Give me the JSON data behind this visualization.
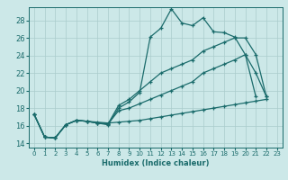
{
  "xlabel": "Humidex (Indice chaleur)",
  "bg_color": "#cce8e8",
  "grid_color": "#aacccc",
  "line_color": "#1a6b6b",
  "xlim": [
    -0.5,
    23.5
  ],
  "ylim": [
    13.5,
    29.5
  ],
  "xticks": [
    0,
    1,
    2,
    3,
    4,
    5,
    6,
    7,
    8,
    9,
    10,
    11,
    12,
    13,
    14,
    15,
    16,
    17,
    18,
    19,
    20,
    21,
    22,
    23
  ],
  "yticks": [
    14,
    16,
    18,
    20,
    22,
    24,
    26,
    28
  ],
  "series": [
    {
      "x": [
        0,
        1,
        2,
        3,
        4,
        5,
        6,
        7,
        8,
        9,
        10,
        11,
        12,
        13,
        14,
        15,
        16,
        17,
        18,
        19,
        20,
        21
      ],
      "y": [
        17.3,
        14.7,
        14.6,
        16.1,
        16.6,
        16.5,
        16.3,
        16.1,
        18.0,
        18.7,
        19.8,
        26.1,
        27.1,
        29.3,
        27.7,
        27.4,
        28.3,
        26.7,
        26.6,
        26.1,
        24.1,
        19.3
      ]
    },
    {
      "x": [
        0,
        1,
        2,
        3,
        4,
        5,
        6,
        7,
        8,
        9,
        10,
        11,
        12,
        13,
        14,
        15,
        16,
        17,
        18,
        19,
        20,
        21,
        22
      ],
      "y": [
        17.3,
        14.7,
        14.6,
        16.1,
        16.6,
        16.5,
        16.3,
        16.2,
        18.3,
        19.0,
        20.0,
        21.0,
        22.0,
        22.5,
        23.0,
        23.5,
        24.5,
        25.0,
        25.5,
        26.0,
        26.0,
        24.1,
        19.3
      ]
    },
    {
      "x": [
        0,
        1,
        2,
        3,
        4,
        5,
        6,
        7,
        8,
        9,
        10,
        11,
        12,
        13,
        14,
        15,
        16,
        17,
        18,
        19,
        20,
        21,
        22
      ],
      "y": [
        17.3,
        14.7,
        14.6,
        16.1,
        16.6,
        16.5,
        16.3,
        16.2,
        17.7,
        18.0,
        18.5,
        19.0,
        19.5,
        20.0,
        20.5,
        21.0,
        22.0,
        22.5,
        23.0,
        23.5,
        24.1,
        22.0,
        19.3
      ]
    },
    {
      "x": [
        0,
        1,
        2,
        3,
        4,
        5,
        6,
        7,
        8,
        9,
        10,
        11,
        12,
        13,
        14,
        15,
        16,
        17,
        18,
        19,
        20,
        21,
        22
      ],
      "y": [
        17.3,
        14.7,
        14.6,
        16.1,
        16.6,
        16.5,
        16.4,
        16.3,
        16.4,
        16.5,
        16.6,
        16.8,
        17.0,
        17.2,
        17.4,
        17.6,
        17.8,
        18.0,
        18.2,
        18.4,
        18.6,
        18.8,
        19.0
      ]
    }
  ]
}
